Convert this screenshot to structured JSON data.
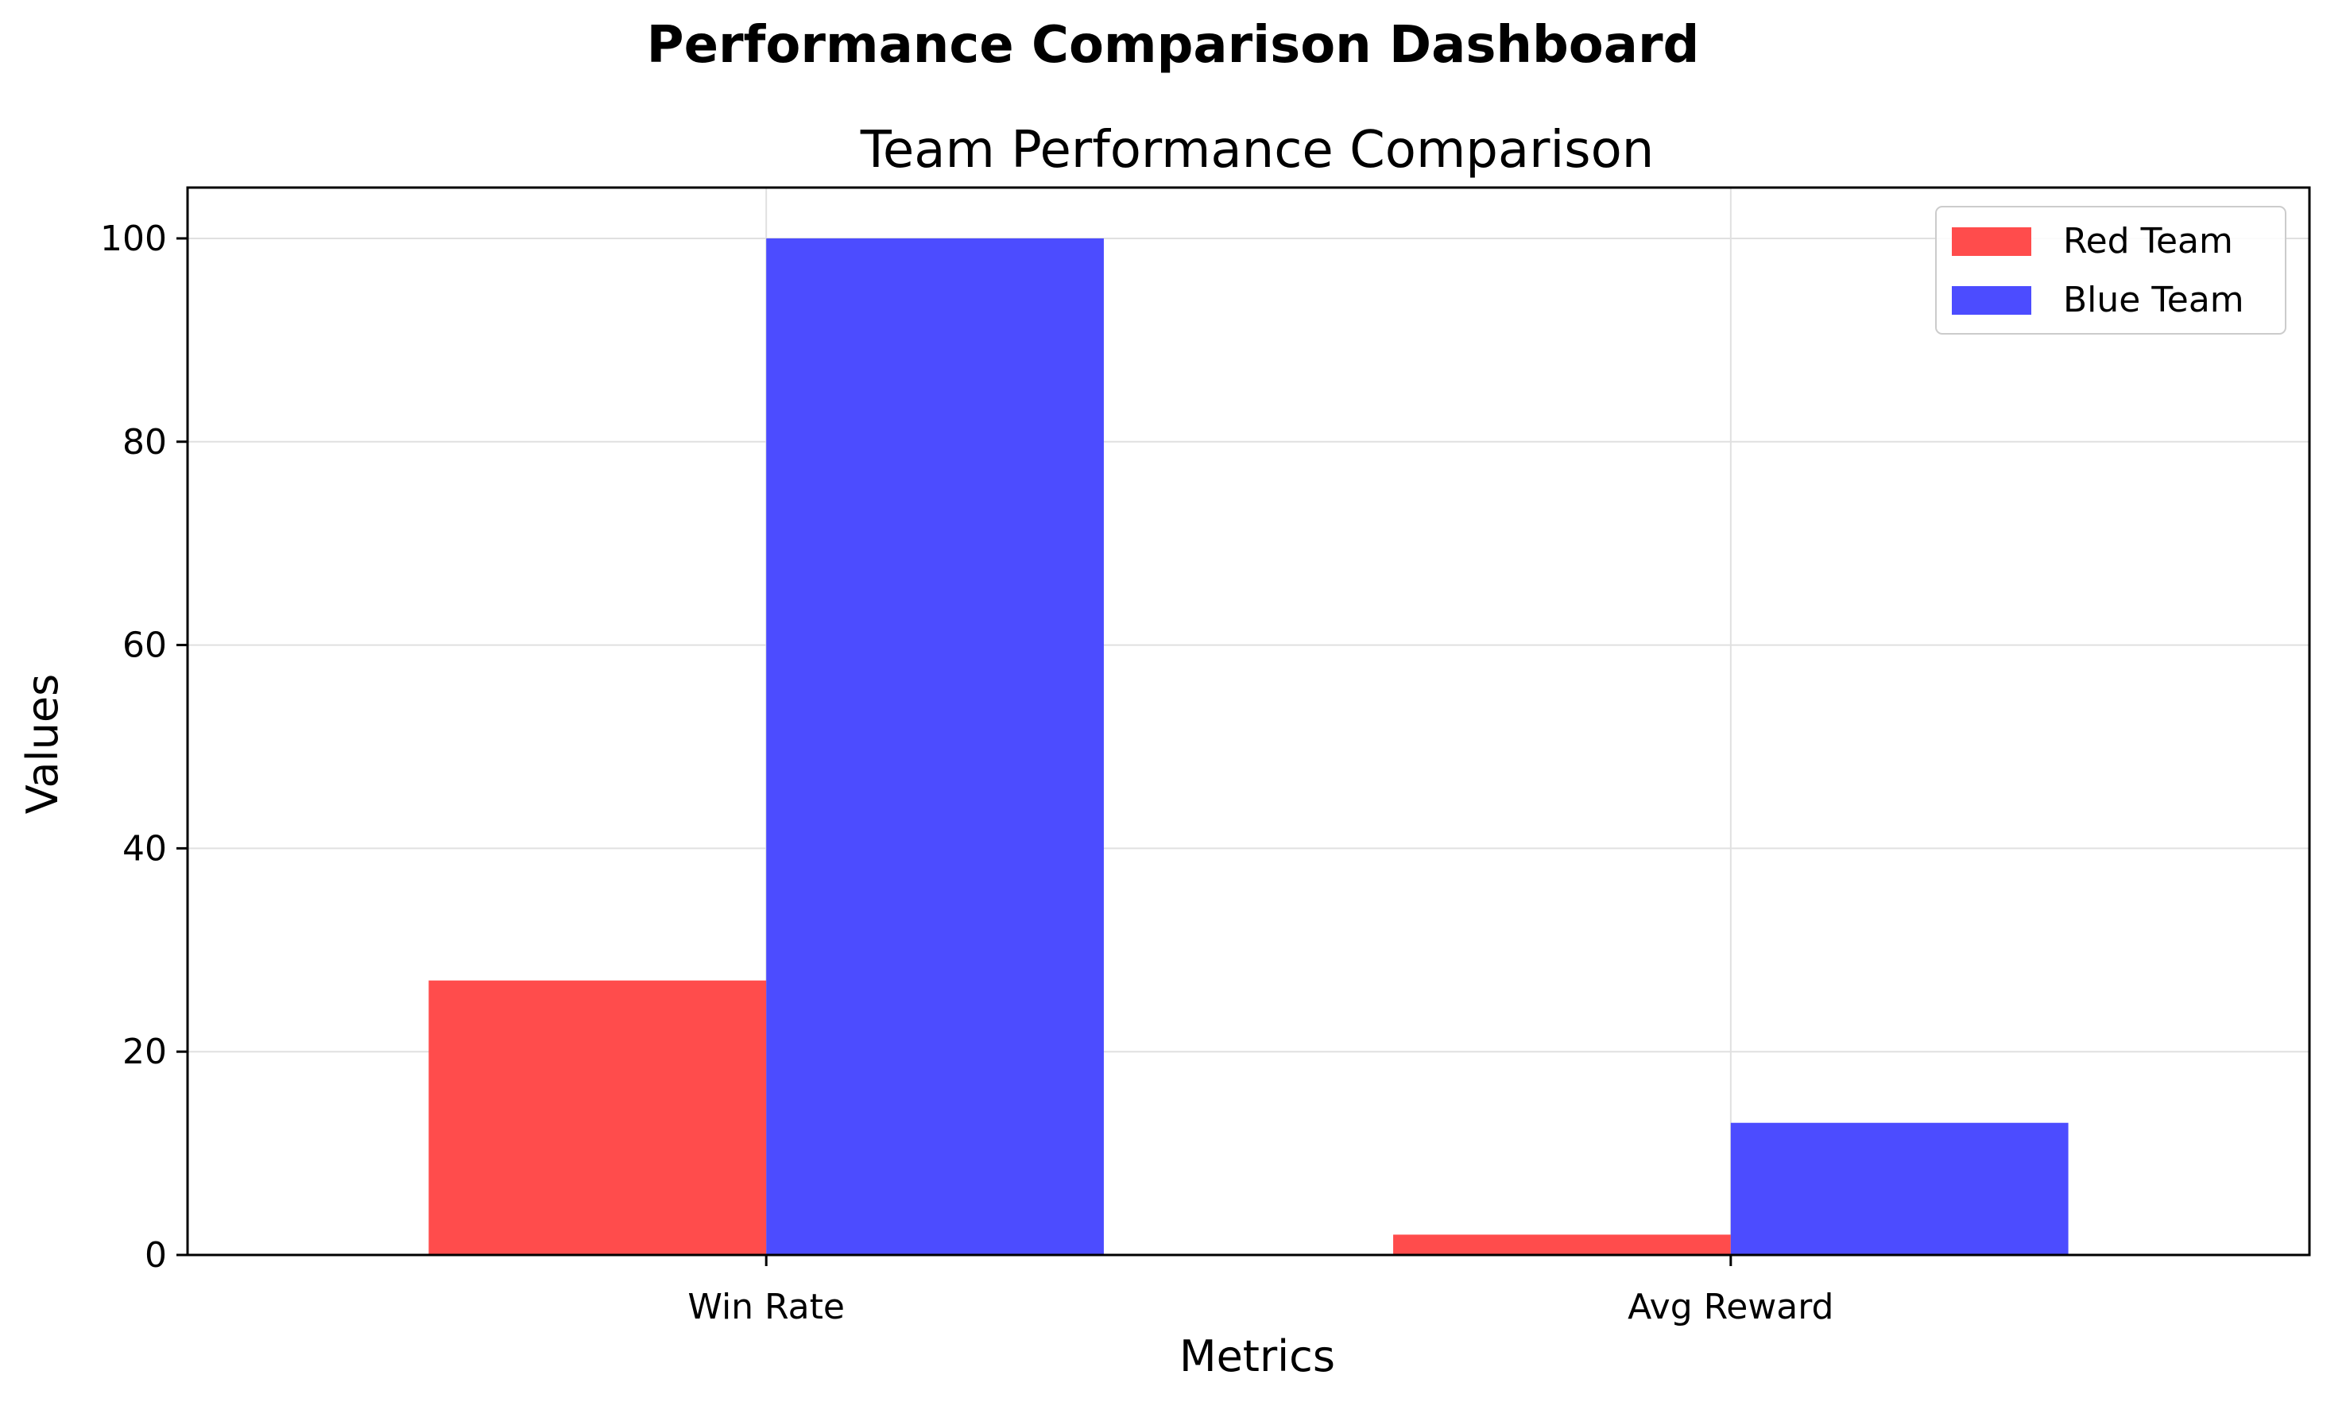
{
  "figure": {
    "suptitle": "Performance Comparison Dashboard"
  },
  "chart_data": {
    "type": "bar",
    "title": "Team Performance Comparison",
    "xlabel": "Metrics",
    "ylabel": "Values",
    "categories": [
      "Win Rate",
      "Avg Reward"
    ],
    "series": [
      {
        "name": "Red Team",
        "color": "#ff4c4c",
        "values": [
          27,
          2
        ]
      },
      {
        "name": "Blue Team",
        "color": "#4c4cff",
        "values": [
          100,
          13
        ]
      }
    ],
    "ylim": [
      0,
      105
    ],
    "yticks": [
      0,
      20,
      40,
      60,
      80,
      100
    ],
    "grid": true,
    "legend_position": "top-right"
  }
}
